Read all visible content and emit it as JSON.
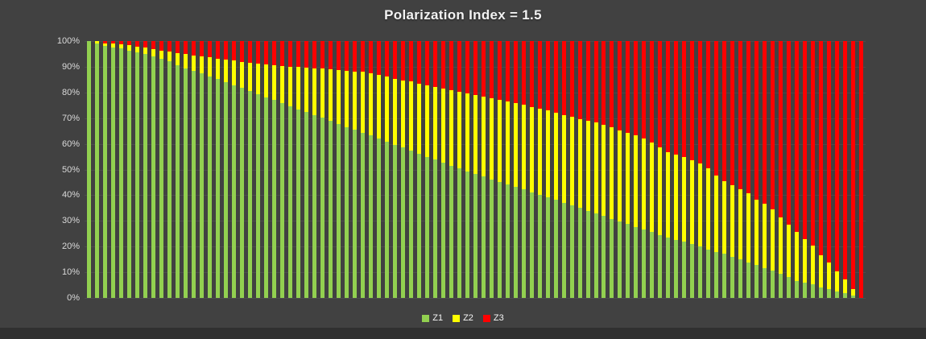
{
  "title": "Polarization Index = 1.5",
  "colors": {
    "background": "#414141",
    "bottom_strip": "#303030",
    "title_text": "#F2F2F2",
    "axis_label": "#D9D9D9",
    "gridline": "#4D4D4D",
    "z1_green": "#92D050",
    "z2_yellow": "#FFFF00",
    "z3_red": "#FF0000"
  },
  "legend": {
    "items": [
      {
        "label": "Z1",
        "color": "#92D050"
      },
      {
        "label": "Z2",
        "color": "#FFFF00"
      },
      {
        "label": "Z3",
        "color": "#FF0000"
      }
    ]
  },
  "chart_data": {
    "type": "bar",
    "subtype": "stacked-100-percent",
    "title": "Polarization Index = 1.5",
    "n_bars": 97,
    "ylim": [
      0,
      100
    ],
    "grid": true,
    "legend_position": "bottom",
    "yticks": [
      "100%",
      "90%",
      "80%",
      "70%",
      "60%",
      "50%",
      "40%",
      "30%",
      "20%",
      "10%",
      "0%"
    ],
    "series": [
      {
        "name": "Z1",
        "color": "#92D050",
        "values": [
          100,
          99,
          98,
          97.5,
          97.1,
          96.3,
          95.6,
          94.9,
          94,
          93.2,
          92.1,
          90.5,
          89.5,
          88.5,
          87.5,
          86.3,
          85.2,
          84,
          82.9,
          81.7,
          80.5,
          79.3,
          78.1,
          77,
          75.8,
          74.7,
          73.5,
          72.4,
          71.2,
          70.1,
          68.9,
          67.8,
          66.6,
          65.5,
          64.3,
          63.2,
          62,
          60.9,
          59.7,
          58.5,
          57.4,
          56.2,
          55,
          53.9,
          52.7,
          51.5,
          50.4,
          49.2,
          48.2,
          47.2,
          46.2,
          45.2,
          44.2,
          43.2,
          42.2,
          41.2,
          40.2,
          39.2,
          38.2,
          37.1,
          36.1,
          35,
          34,
          32.9,
          31.9,
          30.8,
          29.8,
          28.7,
          27.7,
          26.6,
          25.6,
          24.5,
          23.6,
          22.7,
          21.8,
          20.9,
          20,
          18.8,
          18,
          17.2,
          16.1,
          15,
          13.9,
          12.8,
          11.7,
          10.6,
          9.4,
          8.1,
          6.6,
          6.1,
          5.2,
          4.2,
          3.3,
          2.6,
          1.8,
          0.8,
          0
        ]
      },
      {
        "name": "Z2",
        "color": "#FFFF00",
        "values": [
          0,
          1,
          1.2,
          1.5,
          1.6,
          2.1,
          2.3,
          2.5,
          2.8,
          3.1,
          3.7,
          4.8,
          5.5,
          6,
          6.4,
          7.4,
          8,
          8.8,
          9.5,
          10.1,
          10.9,
          11.8,
          12.8,
          13.6,
          14.6,
          15.4,
          16.4,
          17.2,
          18.2,
          19.1,
          20,
          20.9,
          21.8,
          22.7,
          23.7,
          24.2,
          24.7,
          25.2,
          25.7,
          26.3,
          26.8,
          27.3,
          27.9,
          28.3,
          28.9,
          29.5,
          29.9,
          30.5,
          30.8,
          31.2,
          31.6,
          31.9,
          32.3,
          32.6,
          33,
          33.2,
          33.4,
          33.7,
          33.9,
          34.2,
          34.4,
          34.7,
          35,
          35.3,
          35.5,
          35.6,
          35.5,
          35.6,
          35.5,
          35.6,
          34.8,
          34.1,
          33.1,
          33.2,
          33.1,
          32.7,
          32.3,
          31.6,
          29.6,
          28.3,
          27.8,
          27.3,
          26.9,
          25.4,
          25,
          23.9,
          21.9,
          20.4,
          19,
          16.9,
          15.2,
          12.5,
          10.5,
          7.6,
          5.5,
          2.6,
          0
        ]
      },
      {
        "name": "Z3",
        "color": "#FF0000",
        "values": [
          0,
          0,
          0.8,
          1,
          1.3,
          1.6,
          2.1,
          2.6,
          3.2,
          3.7,
          4.2,
          4.7,
          5,
          5.5,
          6.1,
          6.3,
          6.8,
          7.2,
          7.6,
          8.2,
          8.6,
          8.9,
          9.1,
          9.4,
          9.6,
          9.9,
          10.1,
          10.4,
          10.6,
          10.8,
          11.1,
          11.3,
          11.6,
          11.8,
          12,
          12.6,
          13.3,
          13.9,
          14.6,
          15.2,
          15.8,
          16.5,
          17.1,
          17.8,
          18.4,
          19,
          19.7,
          20.3,
          21,
          21.6,
          22.2,
          22.9,
          23.5,
          24.2,
          24.8,
          25.6,
          26.4,
          27.1,
          27.9,
          28.7,
          29.5,
          30.3,
          31,
          31.8,
          32.6,
          33.6,
          34.7,
          35.7,
          36.8,
          37.8,
          39.6,
          41.4,
          43.3,
          44.1,
          45.1,
          46.4,
          47.7,
          49.6,
          52.4,
          54.5,
          56.1,
          57.7,
          59.2,
          61.8,
          63.3,
          65.5,
          68.7,
          71.5,
          74.4,
          77,
          79.6,
          83.3,
          86.2,
          89.8,
          92.7,
          96.6,
          100
        ]
      }
    ]
  }
}
